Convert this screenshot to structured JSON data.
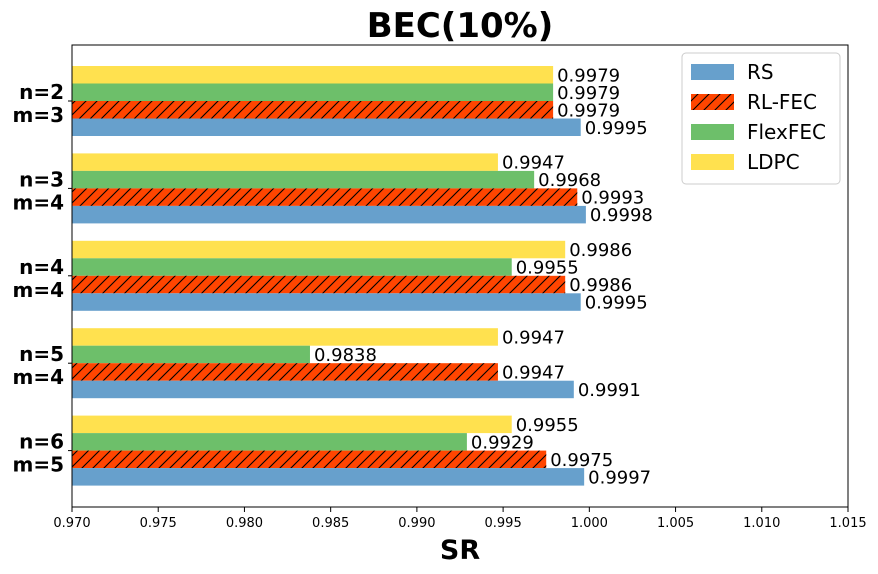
{
  "chart_data": {
    "type": "bar",
    "orientation": "horizontal",
    "title": "BEC(10%)",
    "xlabel": "SR",
    "ylabel": "",
    "xlim": [
      0.97,
      1.015
    ],
    "xticks": [
      "0.970",
      "0.975",
      "0.980",
      "0.985",
      "0.990",
      "0.995",
      "1.000",
      "1.005",
      "1.010",
      "1.015"
    ],
    "categories": [
      {
        "line1": "n=2",
        "line2": "m=3"
      },
      {
        "line1": "n=3",
        "line2": "m=4"
      },
      {
        "line1": "n=4",
        "line2": "m=4"
      },
      {
        "line1": "n=5",
        "line2": "m=4"
      },
      {
        "line1": "n=6",
        "line2": "m=5"
      }
    ],
    "series": [
      {
        "name": "RS",
        "color": "#67a0cc",
        "hatch": false,
        "values": [
          0.9995,
          0.9998,
          0.9995,
          0.9991,
          0.9997
        ],
        "labels": [
          "0.9995",
          "0.9998",
          "0.9995",
          "0.9991",
          "0.9997"
        ]
      },
      {
        "name": "RL-FEC",
        "color": "#ff4500",
        "hatch": true,
        "values": [
          0.9979,
          0.9993,
          0.9986,
          0.9947,
          0.9975
        ],
        "labels": [
          "0.9979",
          "0.9993",
          "0.9986",
          "0.9947",
          "0.9975"
        ]
      },
      {
        "name": "FlexFEC",
        "color": "#6dbf6a",
        "hatch": false,
        "values": [
          0.9979,
          0.9968,
          0.9955,
          0.9838,
          0.9929
        ],
        "labels": [
          "0.9979",
          "0.9968",
          "0.9955",
          "0.9838",
          "0.9929"
        ]
      },
      {
        "name": "LDPC",
        "color": "#ffe14f",
        "hatch": false,
        "values": [
          0.9979,
          0.9947,
          0.9986,
          0.9947,
          0.9955
        ],
        "labels": [
          "0.9979",
          "0.9947",
          "0.9986",
          "0.9947",
          "0.9955"
        ]
      }
    ],
    "legend_position": "top-right",
    "grid": false
  }
}
